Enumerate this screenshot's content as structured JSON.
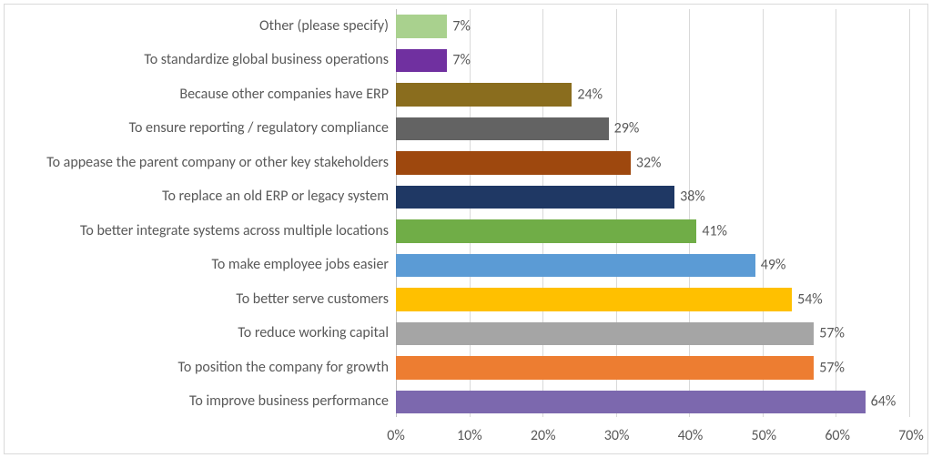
{
  "chart": {
    "type": "bar-horizontal",
    "xlim": [
      0,
      70
    ],
    "xtick_step": 10,
    "xtick_suffix": "%",
    "grid_color": "#d9d9d9",
    "axis_line_color": "#bfbfbf",
    "background_color": "#ffffff",
    "label_fontsize": 16,
    "label_color": "#595959",
    "bar_fill_ratio": 0.68,
    "rows": [
      {
        "label": "Other (please specify)",
        "value": 7,
        "value_label": "7%",
        "color": "#a9d18e"
      },
      {
        "label": "To standardize global business operations",
        "value": 7,
        "value_label": "7%",
        "color": "#7030a0"
      },
      {
        "label": "Because other companies have ERP",
        "value": 24,
        "value_label": "24%",
        "color": "#8a6d1e"
      },
      {
        "label": "To ensure reporting / regulatory compliance",
        "value": 29,
        "value_label": "29%",
        "color": "#636363"
      },
      {
        "label": "To appease the parent company or other key stakeholders",
        "value": 32,
        "value_label": "32%",
        "color": "#9e480e"
      },
      {
        "label": "To replace an old ERP or legacy system",
        "value": 38,
        "value_label": "38%",
        "color": "#1f3864"
      },
      {
        "label": "To better integrate systems across multiple locations",
        "value": 41,
        "value_label": "41%",
        "color": "#70ad47"
      },
      {
        "label": "To make employee jobs easier",
        "value": 49,
        "value_label": "49%",
        "color": "#5b9bd5"
      },
      {
        "label": "To better serve customers",
        "value": 54,
        "value_label": "54%",
        "color": "#ffc000"
      },
      {
        "label": "To reduce working capital",
        "value": 57,
        "value_label": "57%",
        "color": "#a5a5a5"
      },
      {
        "label": "To position the company for growth",
        "value": 57,
        "value_label": "57%",
        "color": "#ed7d31"
      },
      {
        "label": "To improve business performance",
        "value": 64,
        "value_label": "64%",
        "color": "#7c68ae"
      }
    ]
  }
}
